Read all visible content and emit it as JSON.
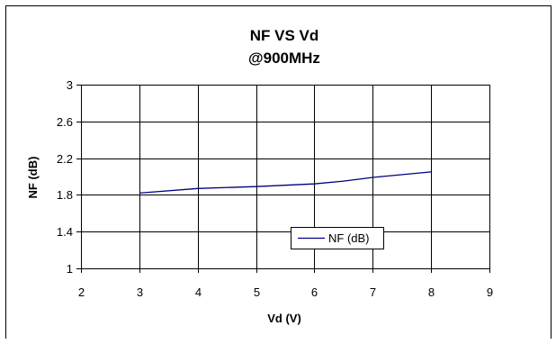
{
  "chart_data": {
    "type": "line",
    "title": "NF VS Vd",
    "subtitle": "@900MHz",
    "xlabel": "Vd (V)",
    "ylabel": "NF (dB)",
    "xlim": [
      2,
      9
    ],
    "ylim": [
      1,
      3
    ],
    "xticks": [
      "2",
      "3",
      "4",
      "5",
      "6",
      "7",
      "8",
      "9"
    ],
    "yticks": [
      "1",
      "1.4",
      "1.8",
      "2.2",
      "2.6",
      "3"
    ],
    "grid": "horizontal and vertical",
    "legend_position": "inside-lower-right",
    "series": [
      {
        "name": "NF (dB)",
        "color": "#000080",
        "x": [
          3,
          4,
          5,
          6,
          6.5,
          7,
          8
        ],
        "y": [
          1.82,
          1.87,
          1.89,
          1.92,
          1.95,
          1.99,
          2.05
        ]
      }
    ]
  }
}
